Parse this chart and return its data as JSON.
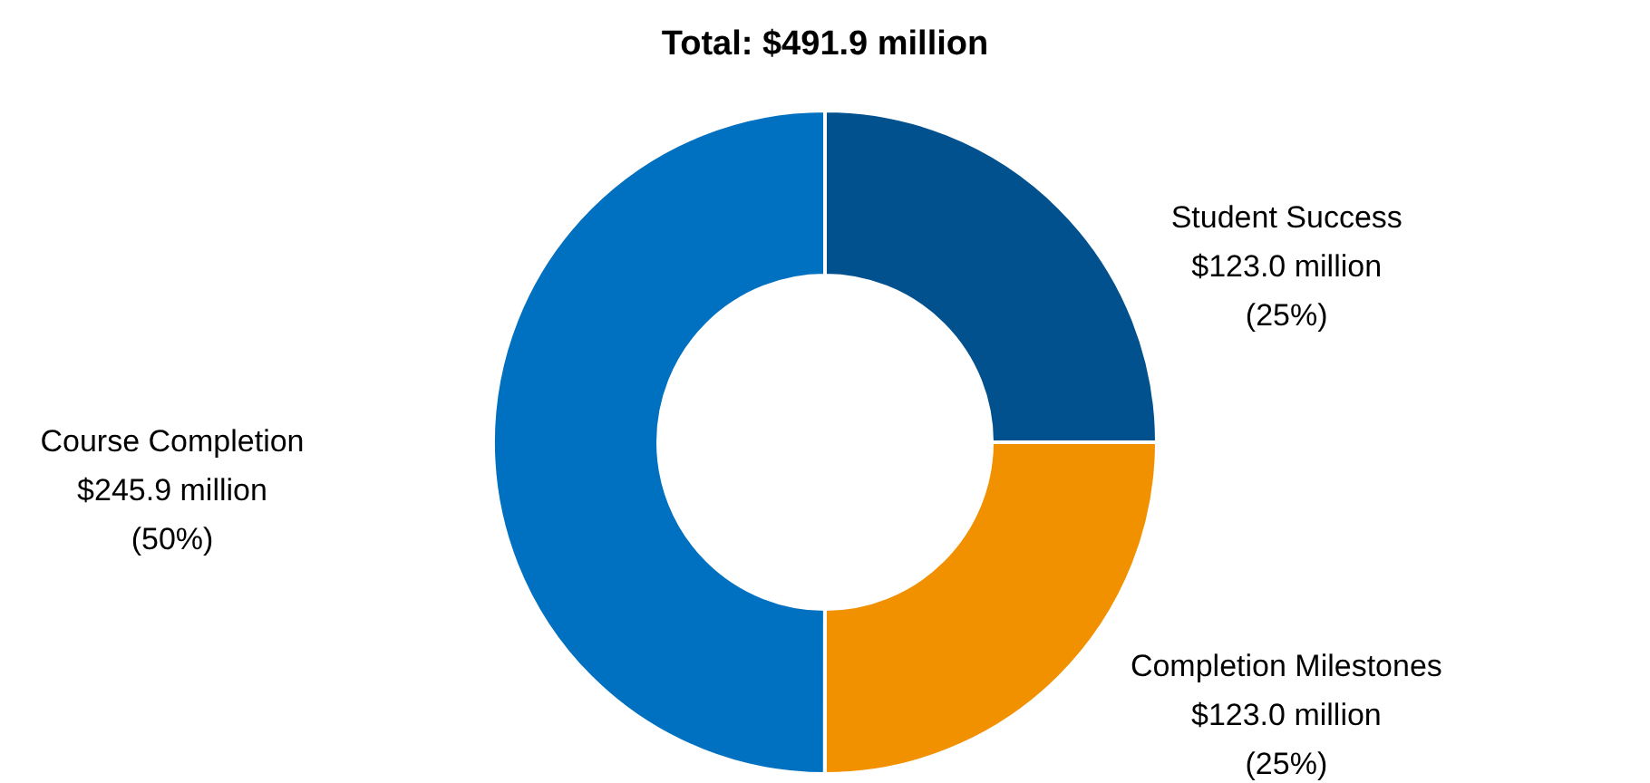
{
  "chart_data": {
    "type": "donut",
    "title": "Total: $491.9 million",
    "categories": [
      "Student Success",
      "Completion Milestones",
      "Course Completion"
    ],
    "values": [
      123.0,
      123.0,
      245.9
    ],
    "colors": [
      "#00518e",
      "#f29100",
      "#0070c0"
    ],
    "value_labels": [
      "$123.0 million",
      "$123.0 million",
      "$245.9 million"
    ],
    "annotations": [
      {
        "text": "(25%)",
        "x": "Student Success"
      },
      {
        "text": "(25%)",
        "x": "Completion Milestones"
      },
      {
        "text": "(50%)",
        "x": "Course Completion"
      }
    ],
    "legend": false
  }
}
